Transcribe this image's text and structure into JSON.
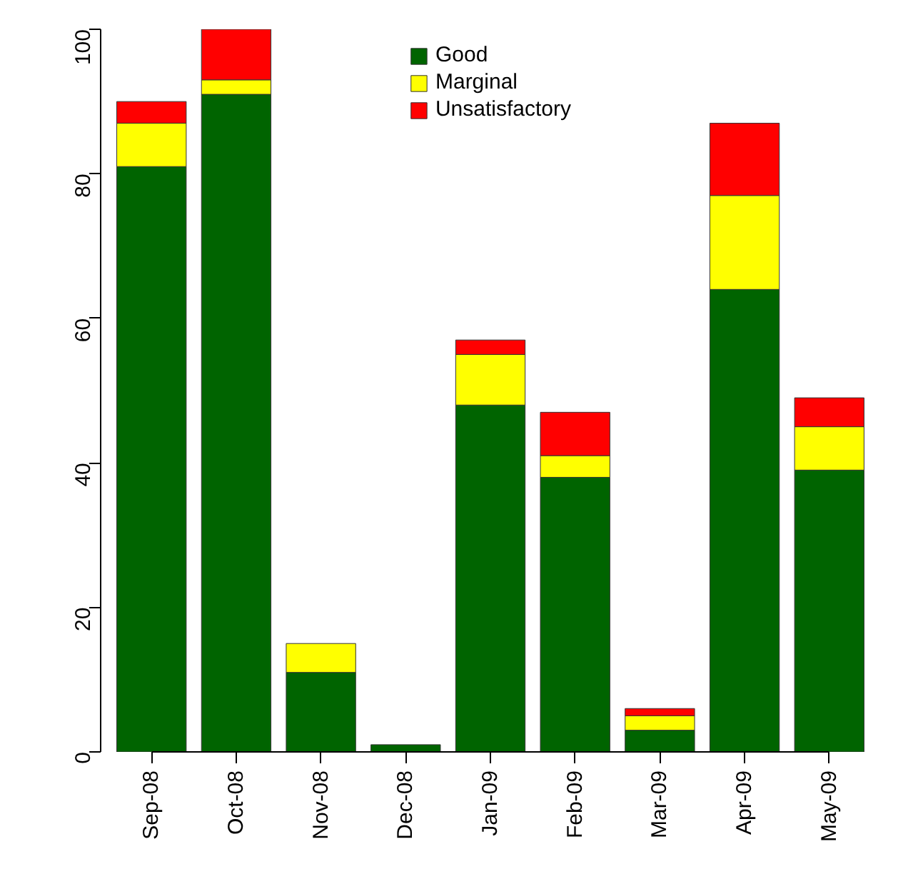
{
  "chart_data": {
    "type": "bar",
    "stacked": true,
    "categories": [
      "Sep-08",
      "Oct-08",
      "Nov-08",
      "Dec-08",
      "Jan-09",
      "Feb-09",
      "Mar-09",
      "Apr-09",
      "May-09"
    ],
    "series": [
      {
        "name": "Good",
        "color": "#006400",
        "values": [
          81,
          91,
          11,
          1,
          48,
          38,
          3,
          64,
          39
        ]
      },
      {
        "name": "Marginal",
        "color": "#ffff00",
        "values": [
          6,
          2,
          4,
          0,
          7,
          3,
          2,
          13,
          6
        ]
      },
      {
        "name": "Unsatisfactory",
        "color": "#ff0000",
        "values": [
          3,
          7,
          0,
          0,
          2,
          6,
          1,
          10,
          4
        ]
      }
    ],
    "ylim": [
      0,
      100
    ],
    "yticks": [
      0,
      20,
      40,
      60,
      80,
      100
    ],
    "grid": false,
    "legend": "top"
  }
}
